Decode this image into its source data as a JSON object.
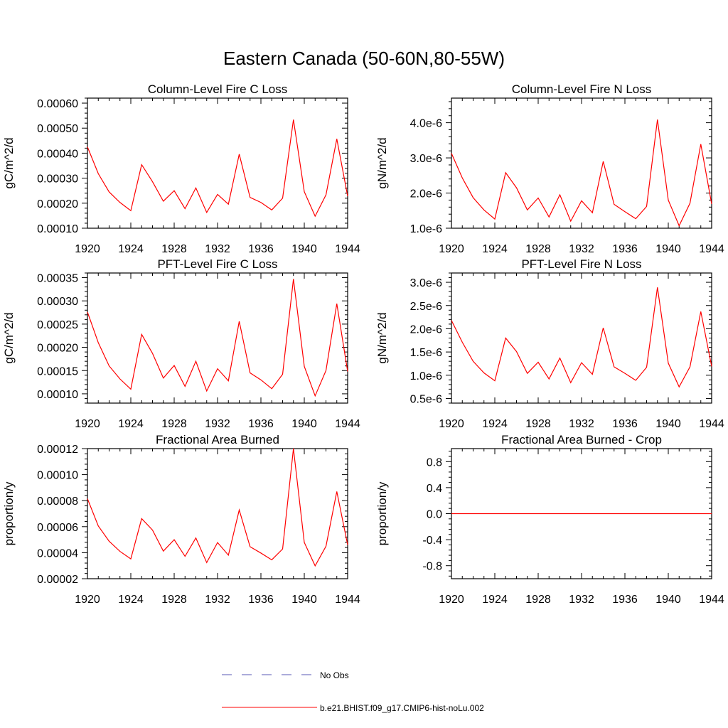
{
  "figure": {
    "title": "Eastern Canada (50-60N,80-55W)",
    "series_color": "#ff0000",
    "obs_color": "#5a5ab4"
  },
  "legend": {
    "obs_label": "No Obs",
    "model_label": "b.e21.BHIST.f09_g17.CMIP6-hist-noLu.002"
  },
  "chart_data": [
    {
      "type": "line",
      "title": "Column-Level Fire C Loss",
      "ylabel": "gC/m^2/d",
      "xlim": [
        1920,
        1944
      ],
      "ylim": [
        0.0001,
        0.00062
      ],
      "x_ticks": [
        "1920",
        "1924",
        "1928",
        "1932",
        "1936",
        "1940",
        "1944"
      ],
      "y_ticks": [
        {
          "value": 0.0001,
          "label": "0.00010"
        },
        {
          "value": 0.0002,
          "label": "0.00020"
        },
        {
          "value": 0.0003,
          "label": "0.00030"
        },
        {
          "value": 0.0004,
          "label": "0.00040"
        },
        {
          "value": 0.0005,
          "label": "0.00050"
        },
        {
          "value": 0.0006,
          "label": "0.00060"
        }
      ],
      "series": [
        {
          "name": "b.e21.BHIST.f09_g17.CMIP6-hist-noLu.002",
          "x": [
            1920,
            1921,
            1922,
            1923,
            1924,
            1925,
            1926,
            1927,
            1928,
            1929,
            1930,
            1931,
            1932,
            1933,
            1934,
            1935,
            1936,
            1937,
            1938,
            1939,
            1940,
            1941,
            1942,
            1943,
            1944
          ],
          "values": [
            0.000425,
            0.000318,
            0.000245,
            0.000203,
            0.00017,
            0.000354,
            0.000286,
            0.000208,
            0.00025,
            0.000178,
            0.000261,
            0.000163,
            0.000235,
            0.000196,
            0.000396,
            0.000223,
            0.000203,
            0.000173,
            0.00022,
            0.000534,
            0.000246,
            0.000148,
            0.000233,
            0.000457,
            0.000228
          ]
        }
      ]
    },
    {
      "type": "line",
      "title": "Column-Level Fire N Loss",
      "ylabel": "gN/m^2/d",
      "xlim": [
        1920,
        1944
      ],
      "ylim": [
        1e-06,
        4.7e-06
      ],
      "x_ticks": [
        "1920",
        "1924",
        "1928",
        "1932",
        "1936",
        "1940",
        "1944"
      ],
      "y_ticks": [
        {
          "value": 1e-06,
          "label": "1.0e-6"
        },
        {
          "value": 2e-06,
          "label": "2.0e-6"
        },
        {
          "value": 3e-06,
          "label": "3.0e-6"
        },
        {
          "value": 4e-06,
          "label": "4.0e-6"
        }
      ],
      "series": [
        {
          "name": "b.e21.BHIST.f09_g17.CMIP6-hist-noLu.002",
          "x": [
            1920,
            1921,
            1922,
            1923,
            1924,
            1925,
            1926,
            1927,
            1928,
            1929,
            1930,
            1931,
            1932,
            1933,
            1934,
            1935,
            1936,
            1937,
            1938,
            1939,
            1940,
            1941,
            1942,
            1943,
            1944
          ],
          "values": [
            3.13e-06,
            2.43e-06,
            1.87e-06,
            1.52e-06,
            1.26e-06,
            2.58e-06,
            2.15e-06,
            1.52e-06,
            1.86e-06,
            1.32e-06,
            1.95e-06,
            1.2e-06,
            1.78e-06,
            1.44e-06,
            2.9e-06,
            1.68e-06,
            1.47e-06,
            1.27e-06,
            1.62e-06,
            4.09e-06,
            1.8e-06,
            1.07e-06,
            1.71e-06,
            3.39e-06,
            1.69e-06
          ]
        }
      ]
    },
    {
      "type": "line",
      "title": "PFT-Level Fire C Loss",
      "ylabel": "gC/m^2/d",
      "xlim": [
        1920,
        1944
      ],
      "ylim": [
        8e-05,
        0.00036
      ],
      "x_ticks": [
        "1920",
        "1924",
        "1928",
        "1932",
        "1936",
        "1940",
        "1944"
      ],
      "y_ticks": [
        {
          "value": 0.0001,
          "label": "0.00010"
        },
        {
          "value": 0.00015,
          "label": "0.00015"
        },
        {
          "value": 0.0002,
          "label": "0.00020"
        },
        {
          "value": 0.00025,
          "label": "0.00025"
        },
        {
          "value": 0.0003,
          "label": "0.00030"
        },
        {
          "value": 0.00035,
          "label": "0.00035"
        }
      ],
      "series": [
        {
          "name": "b.e21.BHIST.f09_g17.CMIP6-hist-noLu.002",
          "x": [
            1920,
            1921,
            1922,
            1923,
            1924,
            1925,
            1926,
            1927,
            1928,
            1929,
            1930,
            1931,
            1932,
            1933,
            1934,
            1935,
            1936,
            1937,
            1938,
            1939,
            1940,
            1941,
            1942,
            1943,
            1944
          ],
          "values": [
            0.000276,
            0.00021,
            0.00016,
            0.000132,
            0.00011,
            0.000228,
            0.000187,
            0.000134,
            0.000161,
            0.000116,
            0.00017,
            0.000106,
            0.000154,
            0.000128,
            0.000256,
            0.000145,
            0.00013,
            0.000111,
            0.000142,
            0.000347,
            0.000159,
            9.56e-05,
            0.00015,
            0.000294,
            0.000148
          ]
        }
      ]
    },
    {
      "type": "line",
      "title": "PFT-Level Fire N Loss",
      "ylabel": "gN/m^2/d",
      "xlim": [
        1920,
        1944
      ],
      "ylim": [
        4e-07,
        3.2e-06
      ],
      "x_ticks": [
        "1920",
        "1924",
        "1928",
        "1932",
        "1936",
        "1940",
        "1944"
      ],
      "y_ticks": [
        {
          "value": 5e-07,
          "label": "0.5e-6"
        },
        {
          "value": 1e-06,
          "label": "1.0e-6"
        },
        {
          "value": 1.5e-06,
          "label": "1.5e-6"
        },
        {
          "value": 2e-06,
          "label": "2.0e-6"
        },
        {
          "value": 2.5e-06,
          "label": "2.5e-6"
        },
        {
          "value": 3e-06,
          "label": "3.0e-6"
        }
      ],
      "series": [
        {
          "name": "b.e21.BHIST.f09_g17.CMIP6-hist-noLu.002",
          "x": [
            1920,
            1921,
            1922,
            1923,
            1924,
            1925,
            1926,
            1927,
            1928,
            1929,
            1930,
            1931,
            1932,
            1933,
            1934,
            1935,
            1936,
            1937,
            1938,
            1939,
            1940,
            1941,
            1942,
            1943,
            1944
          ],
          "values": [
            2.18e-06,
            1.71e-06,
            1.3e-06,
            1.05e-06,
            8.8e-07,
            1.8e-06,
            1.51e-06,
            1.04e-06,
            1.28e-06,
            9.2e-07,
            1.37e-06,
            8.4e-07,
            1.27e-06,
            1.02e-06,
            2.02e-06,
            1.18e-06,
            1.04e-06,
            8.9e-07,
            1.17e-06,
            2.89e-06,
            1.26e-06,
            7.5e-07,
            1.18e-06,
            2.37e-06,
            1.19e-06
          ]
        }
      ]
    },
    {
      "type": "line",
      "title": "Fractional Area Burned",
      "ylabel": "proportion/y",
      "xlim": [
        1920,
        1944
      ],
      "ylim": [
        2e-05,
        0.00012
      ],
      "x_ticks": [
        "1920",
        "1924",
        "1928",
        "1932",
        "1936",
        "1940",
        "1944"
      ],
      "y_ticks": [
        {
          "value": 2e-05,
          "label": "0.00002"
        },
        {
          "value": 4e-05,
          "label": "0.00004"
        },
        {
          "value": 6e-05,
          "label": "0.00006"
        },
        {
          "value": 8e-05,
          "label": "0.00008"
        },
        {
          "value": 0.0001,
          "label": "0.00010"
        },
        {
          "value": 0.00012,
          "label": "0.00012"
        }
      ],
      "series": [
        {
          "name": "b.e21.BHIST.f09_g17.CMIP6-hist-noLu.002",
          "x": [
            1920,
            1921,
            1922,
            1923,
            1924,
            1925,
            1926,
            1927,
            1928,
            1929,
            1930,
            1931,
            1932,
            1933,
            1934,
            1935,
            1936,
            1937,
            1938,
            1939,
            1940,
            1941,
            1942,
            1943,
            1944
          ],
          "values": [
            8.15e-05,
            6.05e-05,
            4.88e-05,
            4.1e-05,
            3.52e-05,
            6.62e-05,
            5.74e-05,
            4.12e-05,
            5e-05,
            3.72e-05,
            5.13e-05,
            3.24e-05,
            4.78e-05,
            3.81e-05,
            7.28e-05,
            4.46e-05,
            3.97e-05,
            3.45e-05,
            4.28e-05,
            0.00012,
            4.79e-05,
            2.99e-05,
            4.49e-05,
            8.7e-05,
            4.6e-05
          ]
        }
      ]
    },
    {
      "type": "line",
      "title": "Fractional Area Burned - Crop",
      "ylabel": "proportion/y",
      "xlim": [
        1920,
        1944
      ],
      "ylim": [
        -1.0,
        1.0
      ],
      "x_ticks": [
        "1920",
        "1924",
        "1928",
        "1932",
        "1936",
        "1940",
        "1944"
      ],
      "y_ticks": [
        {
          "value": -0.8,
          "label": "-0.8"
        },
        {
          "value": -0.4,
          "label": "-0.4"
        },
        {
          "value": 0.0,
          "label": "0.0"
        },
        {
          "value": 0.4,
          "label": "0.4"
        },
        {
          "value": 0.8,
          "label": "0.8"
        }
      ],
      "series": [
        {
          "name": "b.e21.BHIST.f09_g17.CMIP6-hist-noLu.002",
          "x": [
            1920,
            1921,
            1922,
            1923,
            1924,
            1925,
            1926,
            1927,
            1928,
            1929,
            1930,
            1931,
            1932,
            1933,
            1934,
            1935,
            1936,
            1937,
            1938,
            1939,
            1940,
            1941,
            1942,
            1943,
            1944
          ],
          "values": [
            0,
            0,
            0,
            0,
            0,
            0,
            0,
            0,
            0,
            0,
            0,
            0,
            0,
            0,
            0,
            0,
            0,
            0,
            0,
            0,
            0,
            0,
            0,
            0,
            0
          ]
        }
      ]
    }
  ]
}
